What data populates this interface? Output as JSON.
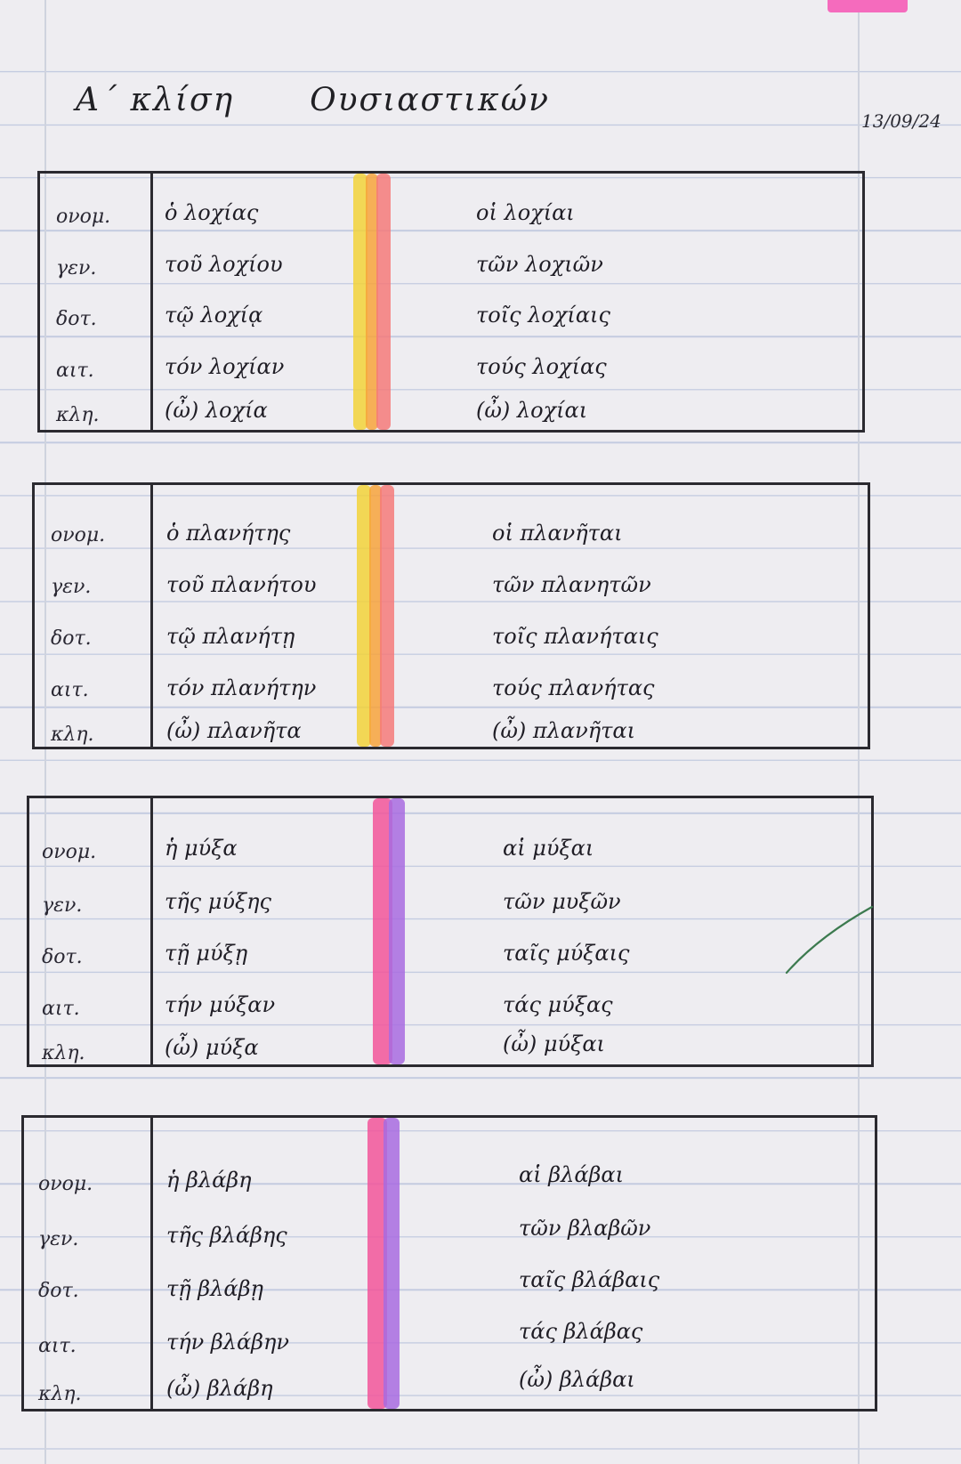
{
  "title": {
    "part1": "Α΄ κλίση",
    "part2": "Ουσιαστικών"
  },
  "date": "13/09/24",
  "case_labels": [
    "ονομ.",
    "γεν.",
    "δοτ.",
    "αιτ.",
    "κλη."
  ],
  "tables": [
    {
      "singular": [
        "ὁ λοχίας",
        "τοῦ λοχίου",
        "τῷ λοχίᾳ",
        "τόν λοχίαν",
        "(ὦ) λοχία"
      ],
      "plural": [
        "οἱ λοχίαι",
        "τῶν λοχιῶν",
        "τοῖς λοχίαις",
        "τούς λοχίας",
        "(ὦ) λοχίαι"
      ],
      "highlight_colors": [
        "#f2d23a",
        "#f7a33c",
        "#f47a7a"
      ]
    },
    {
      "singular": [
        "ὁ πλανήτης",
        "τοῦ πλανήτου",
        "τῷ πλανήτῃ",
        "τόν πλανήτην",
        "(ὦ) πλανῆτα"
      ],
      "plural": [
        "οἱ πλανῆται",
        "τῶν πλανητῶν",
        "τοῖς πλανήταις",
        "τούς πλανήτας",
        "(ὦ) πλανῆται"
      ],
      "highlight_colors": [
        "#f2d23a",
        "#f7a33c",
        "#f47a7a"
      ]
    },
    {
      "singular": [
        "ἡ μύξα",
        "τῆς μύξης",
        "τῇ μύξῃ",
        "τήν μύξαν",
        "(ὦ) μύξα"
      ],
      "plural": [
        "αἱ μύξαι",
        "τῶν μυξῶν",
        "ταῖς μύξαις",
        "τάς μύξας",
        "(ὦ) μύξαι"
      ],
      "highlight_colors": [
        "#f2559a",
        "#a86be0"
      ]
    },
    {
      "singular": [
        "ἡ βλάβη",
        "τῆς βλάβης",
        "τῇ βλάβῃ",
        "τήν βλάβην",
        "(ὦ) βλάβη"
      ],
      "plural": [
        "αἱ βλάβαι",
        "τῶν βλαβῶν",
        "ταῖς βλάβαις",
        "τάς βλάβας",
        "(ὦ) βλάβαι"
      ],
      "highlight_colors": [
        "#f2559a",
        "#a86be0"
      ]
    }
  ]
}
